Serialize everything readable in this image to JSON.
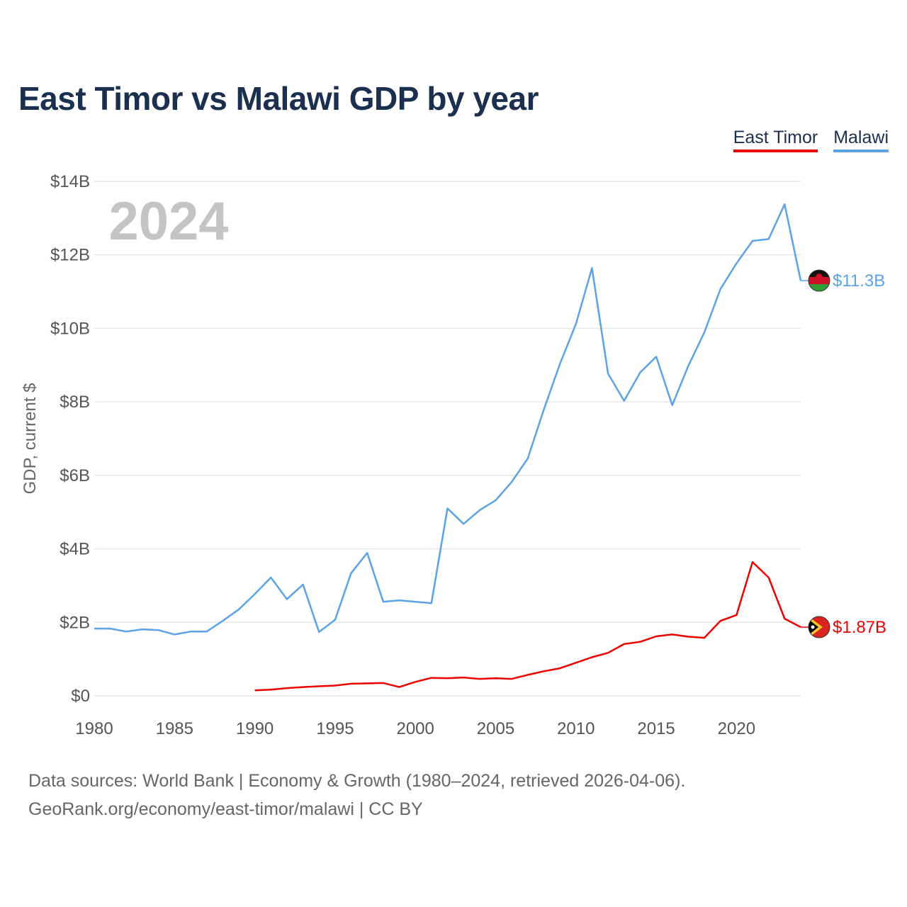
{
  "title": "East Timor vs Malawi GDP by year",
  "legend": {
    "east_timor": "East Timor",
    "malawi": "Malawi"
  },
  "year_label": "2024",
  "colors": {
    "east_timor": "#ee0000",
    "malawi": "#5ba3e6",
    "title": "#1b2f4e"
  },
  "footer": {
    "line1": "Data sources: World Bank | Economy & Growth (1980–2024, retrieved 2026-04-06).",
    "line2": "GeoRank.org/economy/east-timor/malawi | CC BY"
  },
  "chart_data": {
    "type": "line",
    "title": "East Timor vs Malawi GDP by year",
    "xlabel": "",
    "ylabel": "GDP, current $",
    "xlim": [
      1980,
      2024
    ],
    "ylim": [
      0,
      14
    ],
    "x_ticks": [
      1980,
      1985,
      1990,
      1995,
      2000,
      2005,
      2010,
      2015,
      2020
    ],
    "y_ticks": [
      0,
      2,
      4,
      6,
      8,
      10,
      12,
      14
    ],
    "y_tick_labels": [
      "$0",
      "$2B",
      "$4B",
      "$6B",
      "$8B",
      "$10B",
      "$12B",
      "$14B"
    ],
    "series": [
      {
        "name": "Malawi",
        "end_label": "$11.3B",
        "flag_icon": "malawi-flag-icon",
        "x": [
          1980,
          1981,
          1982,
          1983,
          1984,
          1985,
          1986,
          1987,
          1988,
          1989,
          1990,
          1991,
          1992,
          1993,
          1994,
          1995,
          1996,
          1997,
          1998,
          1999,
          2000,
          2001,
          2002,
          2003,
          2004,
          2005,
          2006,
          2007,
          2008,
          2009,
          2010,
          2011,
          2012,
          2013,
          2014,
          2015,
          2016,
          2017,
          2018,
          2019,
          2020,
          2021,
          2022,
          2023,
          2024
        ],
        "values": [
          1.83,
          1.83,
          1.75,
          1.81,
          1.79,
          1.67,
          1.75,
          1.75,
          2.04,
          2.35,
          2.77,
          3.22,
          2.63,
          3.03,
          1.74,
          2.07,
          3.34,
          3.89,
          2.56,
          2.6,
          2.56,
          2.52,
          5.1,
          4.68,
          5.05,
          5.32,
          5.82,
          6.46,
          7.79,
          9.03,
          10.12,
          11.64,
          8.77,
          8.03,
          8.8,
          9.23,
          7.91,
          8.98,
          9.89,
          11.07,
          11.77,
          12.38,
          12.43,
          13.38,
          11.3
        ]
      },
      {
        "name": "East Timor",
        "end_label": "$1.87B",
        "flag_icon": "east-timor-flag-icon",
        "x": [
          1990,
          1991,
          1992,
          1993,
          1994,
          1995,
          1996,
          1997,
          1998,
          1999,
          2000,
          2001,
          2002,
          2003,
          2004,
          2005,
          2006,
          2007,
          2008,
          2009,
          2010,
          2011,
          2012,
          2013,
          2014,
          2015,
          2016,
          2017,
          2018,
          2019,
          2020,
          2021,
          2022,
          2023,
          2024
        ],
        "values": [
          0.15,
          0.17,
          0.21,
          0.24,
          0.26,
          0.28,
          0.33,
          0.34,
          0.35,
          0.24,
          0.38,
          0.49,
          0.48,
          0.5,
          0.46,
          0.48,
          0.46,
          0.57,
          0.67,
          0.75,
          0.9,
          1.05,
          1.17,
          1.41,
          1.47,
          1.62,
          1.67,
          1.61,
          1.58,
          2.04,
          2.2,
          3.64,
          3.22,
          2.1,
          1.87
        ]
      }
    ]
  }
}
